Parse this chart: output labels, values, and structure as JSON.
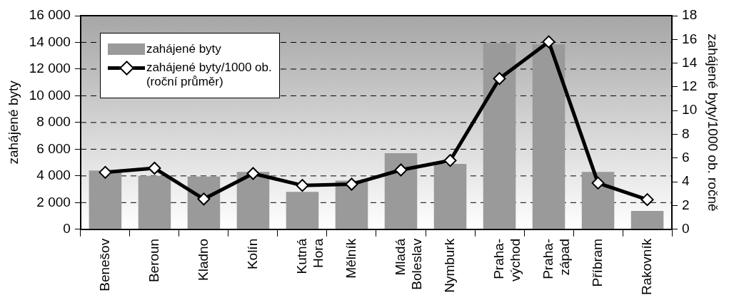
{
  "chart_data": {
    "type": "bar",
    "ylabel": "zahájené byty",
    "y2label": "zahájené byty/1000 ob. ročně",
    "categories": [
      "Benešov",
      "Beroun",
      "Kladno",
      "Kolín",
      "Kutná\nHora",
      "Mělník",
      "Mladá\nBoleslav",
      "Nymburk",
      "Praha-\nvýchod",
      "Praha-\nzápad",
      "Příbram",
      "Rakovník"
    ],
    "series": [
      {
        "name": "zahájené byty",
        "color": "#9a9a9a",
        "values": [
          4400,
          4000,
          3950,
          4300,
          2800,
          3650,
          5700,
          4900,
          13950,
          13850,
          4300,
          1380
        ]
      },
      {
        "name": "zahájené byty/1000 ob.\n(roční průměr)",
        "type": "line",
        "axis": "y2",
        "color": "#000000",
        "marker": "diamond",
        "values": [
          4.8,
          5.15,
          2.55,
          4.7,
          3.7,
          3.8,
          5.0,
          5.8,
          12.7,
          15.8,
          3.9,
          2.5
        ]
      }
    ],
    "ylim": [
      0,
      16000
    ],
    "yticks": [
      {
        "value": 0,
        "label": "0"
      },
      {
        "value": 2000,
        "label": "2 000"
      },
      {
        "value": 4000,
        "label": "4 000"
      },
      {
        "value": 6000,
        "label": "6 000"
      },
      {
        "value": 8000,
        "label": "8 000"
      },
      {
        "value": 10000,
        "label": "10 000"
      },
      {
        "value": 12000,
        "label": "12 000"
      },
      {
        "value": 14000,
        "label": "14 000"
      },
      {
        "value": 16000,
        "label": "16 000"
      }
    ],
    "y2lim": [
      0,
      18
    ],
    "y2ticks": [
      0,
      2,
      4,
      6,
      8,
      10,
      12,
      14,
      16,
      18
    ],
    "grid": "y",
    "legend": "top left"
  }
}
